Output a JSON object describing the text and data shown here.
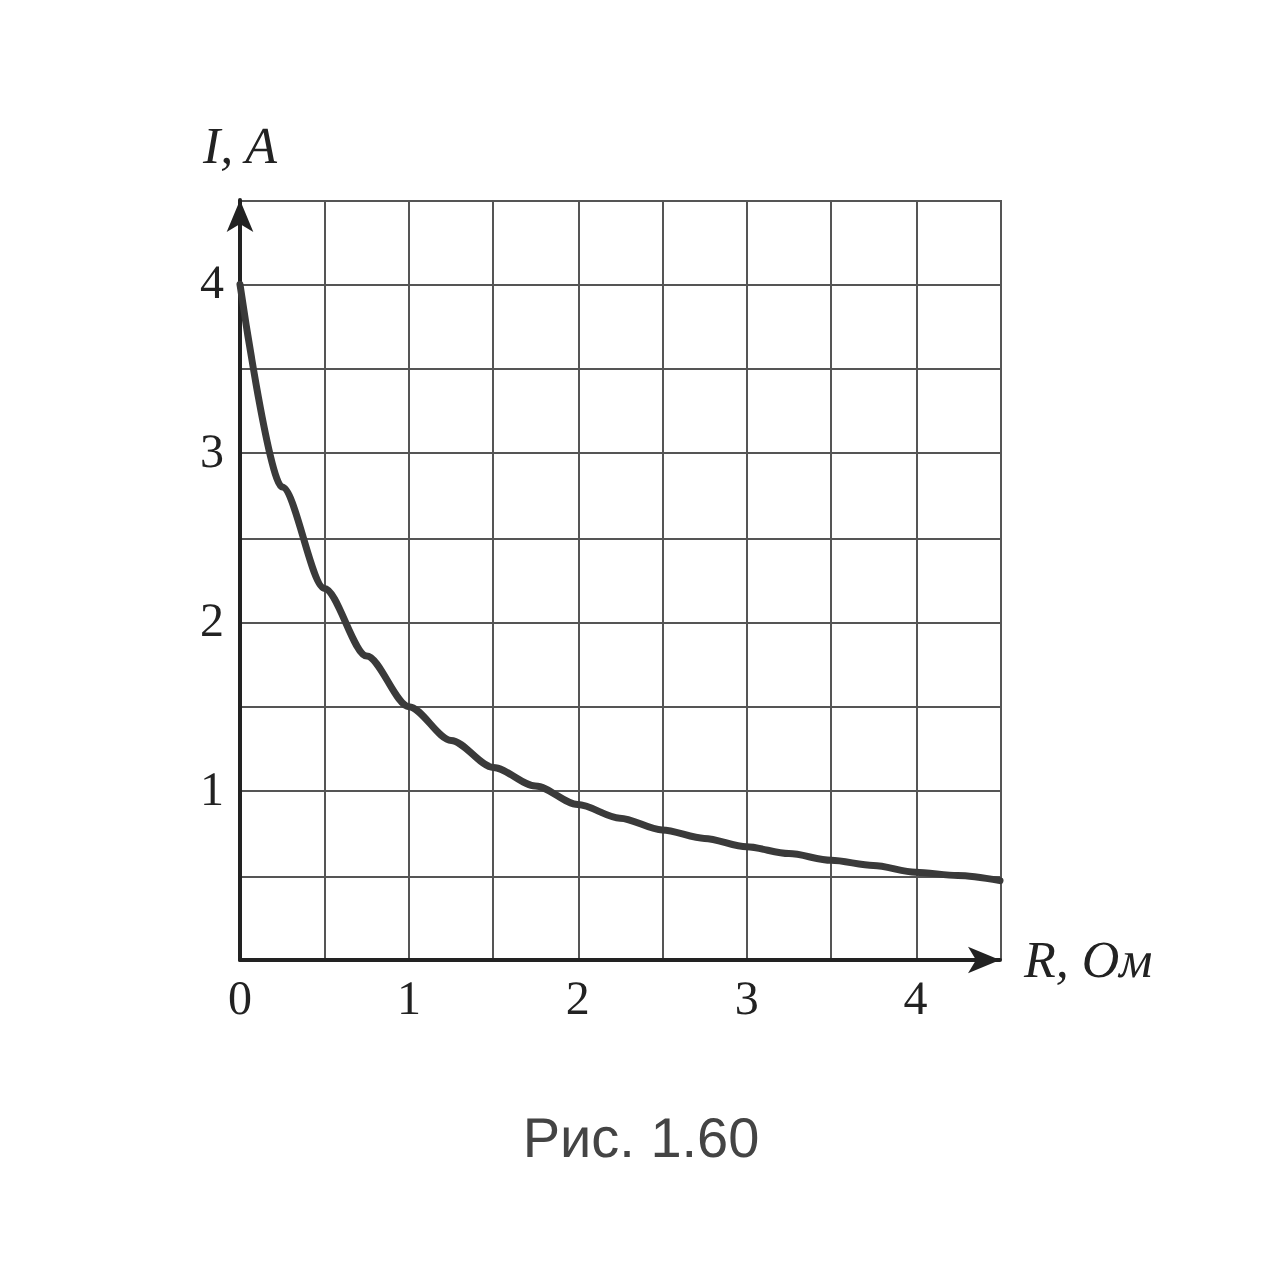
{
  "chart_data": {
    "type": "line",
    "xlabel": "R, Ом",
    "ylabel": "I, A",
    "annotations": [
      "Рис. 1.60"
    ],
    "x": [
      0,
      0.25,
      0.5,
      0.75,
      1,
      1.25,
      1.5,
      1.75,
      2,
      2.25,
      2.5,
      2.75,
      3,
      3.25,
      3.5,
      3.75,
      4,
      4.25,
      4.5
    ],
    "series": [
      {
        "color": "#3a3a3a",
        "values": [
          4,
          2.8,
          2.2,
          1.8,
          1.5,
          1.3,
          1.14,
          1.03,
          0.92,
          0.84,
          0.77,
          0.72,
          0.67,
          0.63,
          0.59,
          0.56,
          0.52,
          0.5,
          0.47
        ]
      }
    ],
    "xlim": [
      0,
      4.5
    ],
    "ylim": [
      0,
      4.5
    ],
    "xticks": [
      0,
      {
        "value": 0.5,
        "label": null
      },
      1,
      {
        "value": 1.5,
        "label": null
      },
      2,
      {
        "value": 2.5,
        "label": null
      },
      3,
      {
        "value": 3.5,
        "label": null
      },
      4,
      {
        "value": 4.5,
        "label": null
      }
    ],
    "yticks": [
      {
        "value": 0,
        "label": null
      },
      {
        "value": 0.5,
        "label": null
      },
      1,
      {
        "value": 1.5,
        "label": null
      },
      2,
      {
        "value": 2.5,
        "label": null
      },
      3,
      {
        "value": 3.5,
        "label": null
      },
      4,
      {
        "value": 4.5,
        "label": null
      }
    ],
    "grid": true,
    "marker": "none",
    "line_style": "solid"
  }
}
